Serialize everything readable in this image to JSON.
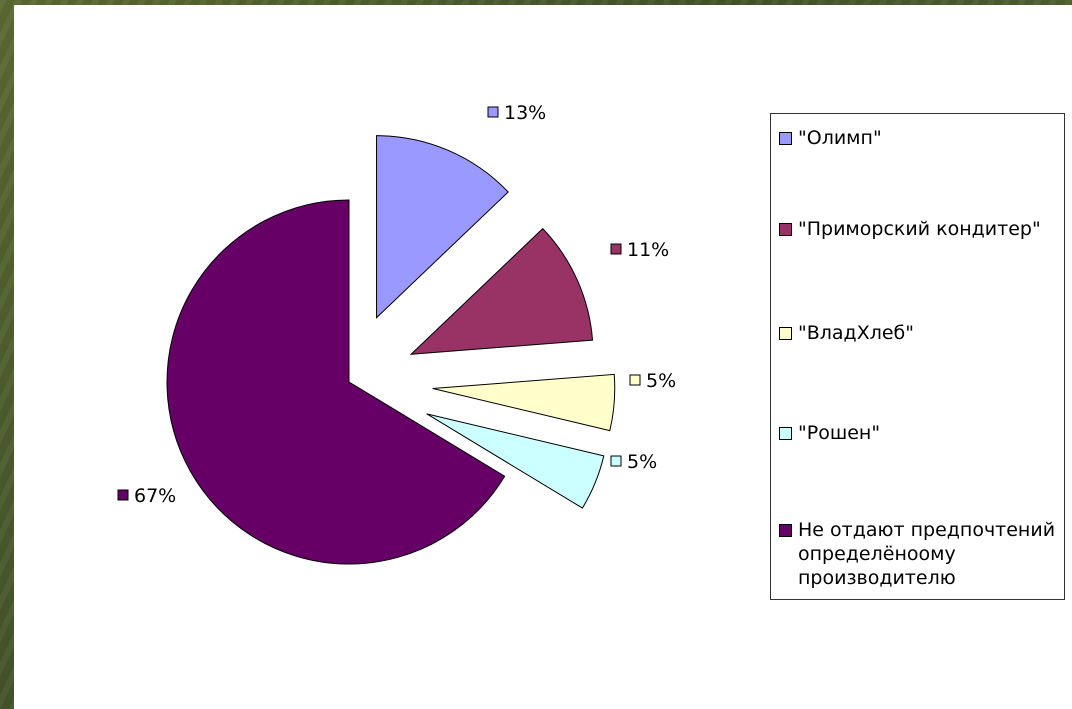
{
  "chart_data": {
    "type": "pie",
    "exploded": true,
    "legend_position": "right",
    "slices": [
      {
        "label": "\"Олимп\"",
        "value": 13,
        "value_label": "13%",
        "color": "#9999ff"
      },
      {
        "label": "\"Приморский кондитер\"",
        "value": 11,
        "value_label": "11%",
        "color": "#993366"
      },
      {
        "label": "\"ВладХлеб\"",
        "value": 5,
        "value_label": "5%",
        "color": "#ffffcc"
      },
      {
        "label": "\"Рошен\"",
        "value": 5,
        "value_label": "5%",
        "color": "#ccffff"
      },
      {
        "label": "Не отдают предпочтений определёноому производителю",
        "value": 67,
        "value_label": "67%",
        "color": "#660066"
      }
    ]
  }
}
